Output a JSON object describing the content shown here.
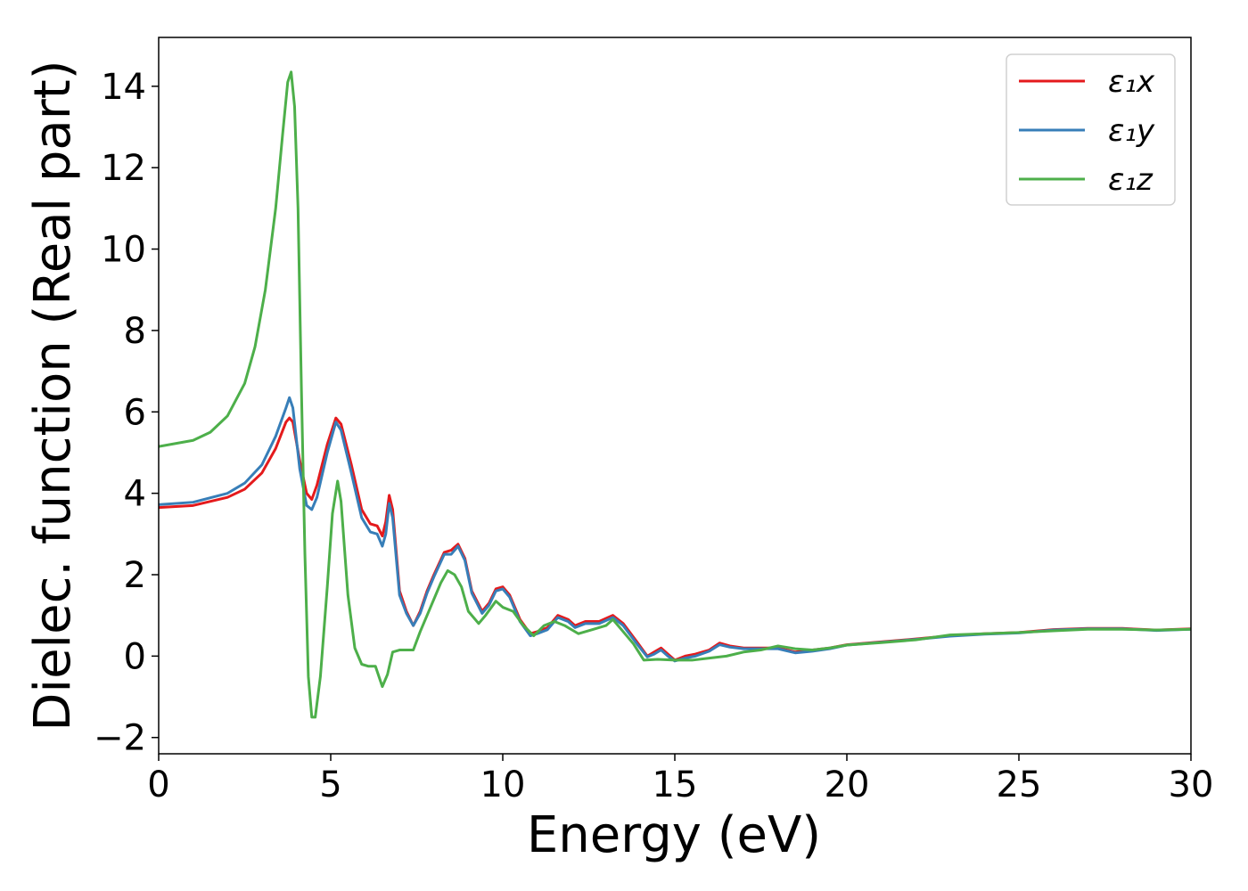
{
  "chart_data": {
    "type": "line",
    "title": "",
    "xlabel": "Energy (eV)",
    "ylabel": "Dielec. function (Real part)",
    "xlim": [
      0,
      30
    ],
    "ylim": [
      -2.4,
      15.2
    ],
    "xticks": [
      0,
      5,
      10,
      15,
      20,
      25,
      30
    ],
    "xtick_labels": [
      "0",
      "5",
      "10",
      "15",
      "20",
      "25",
      "30"
    ],
    "yticks": [
      -2,
      0,
      2,
      4,
      6,
      8,
      10,
      12,
      14
    ],
    "ytick_labels": [
      "−2",
      "0",
      "2",
      "4",
      "6",
      "8",
      "10",
      "12",
      "14"
    ],
    "grid": false,
    "legend_position": "top-right",
    "series": [
      {
        "name": "ε₁x",
        "color": "#e41a1c",
        "points": [
          [
            0,
            3.65
          ],
          [
            1,
            3.7
          ],
          [
            2,
            3.9
          ],
          [
            2.5,
            4.1
          ],
          [
            3,
            4.5
          ],
          [
            3.4,
            5.1
          ],
          [
            3.7,
            5.75
          ],
          [
            3.8,
            5.85
          ],
          [
            3.9,
            5.75
          ],
          [
            4.1,
            4.8
          ],
          [
            4.3,
            4.0
          ],
          [
            4.45,
            3.85
          ],
          [
            4.6,
            4.2
          ],
          [
            4.9,
            5.2
          ],
          [
            5.15,
            5.85
          ],
          [
            5.3,
            5.7
          ],
          [
            5.6,
            4.7
          ],
          [
            5.9,
            3.6
          ],
          [
            6.15,
            3.25
          ],
          [
            6.35,
            3.2
          ],
          [
            6.5,
            2.95
          ],
          [
            6.6,
            3.3
          ],
          [
            6.7,
            3.95
          ],
          [
            6.8,
            3.6
          ],
          [
            7.0,
            1.6
          ],
          [
            7.2,
            1.1
          ],
          [
            7.4,
            0.75
          ],
          [
            7.6,
            1.1
          ],
          [
            7.8,
            1.6
          ],
          [
            8.0,
            2.0
          ],
          [
            8.3,
            2.55
          ],
          [
            8.5,
            2.6
          ],
          [
            8.7,
            2.75
          ],
          [
            8.9,
            2.4
          ],
          [
            9.1,
            1.6
          ],
          [
            9.4,
            1.1
          ],
          [
            9.6,
            1.3
          ],
          [
            9.8,
            1.65
          ],
          [
            10.0,
            1.7
          ],
          [
            10.2,
            1.5
          ],
          [
            10.5,
            0.9
          ],
          [
            10.8,
            0.55
          ],
          [
            11.0,
            0.6
          ],
          [
            11.3,
            0.7
          ],
          [
            11.6,
            1.0
          ],
          [
            11.9,
            0.9
          ],
          [
            12.1,
            0.75
          ],
          [
            12.4,
            0.85
          ],
          [
            12.8,
            0.85
          ],
          [
            13.2,
            1.0
          ],
          [
            13.5,
            0.8
          ],
          [
            13.9,
            0.35
          ],
          [
            14.2,
            0.0
          ],
          [
            14.4,
            0.1
          ],
          [
            14.6,
            0.2
          ],
          [
            14.8,
            0.05
          ],
          [
            15.0,
            -0.1
          ],
          [
            15.3,
            0.0
          ],
          [
            15.6,
            0.05
          ],
          [
            16.0,
            0.15
          ],
          [
            16.3,
            0.32
          ],
          [
            16.6,
            0.25
          ],
          [
            17.0,
            0.2
          ],
          [
            17.5,
            0.2
          ],
          [
            18.0,
            0.2
          ],
          [
            18.5,
            0.1
          ],
          [
            19.0,
            0.15
          ],
          [
            19.5,
            0.2
          ],
          [
            20,
            0.28
          ],
          [
            21,
            0.35
          ],
          [
            22,
            0.42
          ],
          [
            23,
            0.5
          ],
          [
            24,
            0.55
          ],
          [
            25,
            0.58
          ],
          [
            26,
            0.65
          ],
          [
            27,
            0.68
          ],
          [
            28,
            0.68
          ],
          [
            29,
            0.64
          ],
          [
            30,
            0.67
          ]
        ]
      },
      {
        "name": "ε₁y",
        "color": "#377eb8",
        "points": [
          [
            0,
            3.72
          ],
          [
            1,
            3.78
          ],
          [
            2,
            4.0
          ],
          [
            2.5,
            4.25
          ],
          [
            3,
            4.7
          ],
          [
            3.4,
            5.4
          ],
          [
            3.7,
            6.1
          ],
          [
            3.8,
            6.35
          ],
          [
            3.9,
            6.1
          ],
          [
            4.1,
            4.6
          ],
          [
            4.3,
            3.7
          ],
          [
            4.45,
            3.6
          ],
          [
            4.6,
            3.9
          ],
          [
            4.9,
            5.0
          ],
          [
            5.15,
            5.75
          ],
          [
            5.3,
            5.55
          ],
          [
            5.6,
            4.5
          ],
          [
            5.9,
            3.4
          ],
          [
            6.15,
            3.05
          ],
          [
            6.35,
            3.0
          ],
          [
            6.5,
            2.7
          ],
          [
            6.6,
            3.0
          ],
          [
            6.7,
            3.75
          ],
          [
            6.8,
            3.4
          ],
          [
            7.0,
            1.5
          ],
          [
            7.2,
            1.05
          ],
          [
            7.4,
            0.75
          ],
          [
            7.6,
            1.05
          ],
          [
            7.8,
            1.55
          ],
          [
            8.0,
            1.95
          ],
          [
            8.3,
            2.5
          ],
          [
            8.5,
            2.5
          ],
          [
            8.7,
            2.7
          ],
          [
            8.9,
            2.35
          ],
          [
            9.1,
            1.55
          ],
          [
            9.4,
            1.05
          ],
          [
            9.6,
            1.25
          ],
          [
            9.8,
            1.6
          ],
          [
            10.0,
            1.65
          ],
          [
            10.2,
            1.45
          ],
          [
            10.5,
            0.85
          ],
          [
            10.8,
            0.5
          ],
          [
            11.0,
            0.55
          ],
          [
            11.3,
            0.65
          ],
          [
            11.6,
            0.95
          ],
          [
            11.9,
            0.85
          ],
          [
            12.1,
            0.7
          ],
          [
            12.4,
            0.8
          ],
          [
            12.8,
            0.8
          ],
          [
            13.2,
            0.95
          ],
          [
            13.5,
            0.75
          ],
          [
            13.9,
            0.3
          ],
          [
            14.2,
            -0.02
          ],
          [
            14.4,
            0.05
          ],
          [
            14.6,
            0.15
          ],
          [
            14.8,
            0.0
          ],
          [
            15.0,
            -0.12
          ],
          [
            15.3,
            -0.05
          ],
          [
            15.6,
            0.0
          ],
          [
            16.0,
            0.12
          ],
          [
            16.3,
            0.28
          ],
          [
            16.6,
            0.22
          ],
          [
            17.0,
            0.18
          ],
          [
            17.5,
            0.18
          ],
          [
            18.0,
            0.18
          ],
          [
            18.5,
            0.08
          ],
          [
            19.0,
            0.12
          ],
          [
            19.5,
            0.18
          ],
          [
            20,
            0.27
          ],
          [
            21,
            0.34
          ],
          [
            22,
            0.41
          ],
          [
            23,
            0.49
          ],
          [
            24,
            0.54
          ],
          [
            25,
            0.57
          ],
          [
            26,
            0.64
          ],
          [
            27,
            0.67
          ],
          [
            28,
            0.67
          ],
          [
            29,
            0.63
          ],
          [
            30,
            0.66
          ]
        ]
      },
      {
        "name": "ε₁z",
        "color": "#4daf4a",
        "points": [
          [
            0,
            5.15
          ],
          [
            1,
            5.3
          ],
          [
            1.5,
            5.5
          ],
          [
            2,
            5.9
          ],
          [
            2.5,
            6.7
          ],
          [
            2.8,
            7.6
          ],
          [
            3.1,
            9.0
          ],
          [
            3.4,
            11.0
          ],
          [
            3.6,
            12.8
          ],
          [
            3.75,
            14.1
          ],
          [
            3.85,
            14.35
          ],
          [
            3.95,
            13.5
          ],
          [
            4.05,
            11.0
          ],
          [
            4.15,
            6.5
          ],
          [
            4.25,
            2.5
          ],
          [
            4.35,
            -0.5
          ],
          [
            4.45,
            -1.5
          ],
          [
            4.55,
            -1.5
          ],
          [
            4.7,
            -0.5
          ],
          [
            4.9,
            1.7
          ],
          [
            5.05,
            3.5
          ],
          [
            5.2,
            4.3
          ],
          [
            5.3,
            3.8
          ],
          [
            5.5,
            1.5
          ],
          [
            5.7,
            0.2
          ],
          [
            5.9,
            -0.2
          ],
          [
            6.1,
            -0.25
          ],
          [
            6.3,
            -0.25
          ],
          [
            6.5,
            -0.75
          ],
          [
            6.65,
            -0.45
          ],
          [
            6.8,
            0.1
          ],
          [
            7.0,
            0.15
          ],
          [
            7.2,
            0.15
          ],
          [
            7.4,
            0.15
          ],
          [
            7.6,
            0.6
          ],
          [
            7.9,
            1.2
          ],
          [
            8.2,
            1.8
          ],
          [
            8.4,
            2.1
          ],
          [
            8.6,
            2.0
          ],
          [
            8.8,
            1.7
          ],
          [
            9.0,
            1.1
          ],
          [
            9.3,
            0.8
          ],
          [
            9.5,
            1.0
          ],
          [
            9.8,
            1.35
          ],
          [
            10.0,
            1.2
          ],
          [
            10.3,
            1.1
          ],
          [
            10.6,
            0.75
          ],
          [
            10.9,
            0.5
          ],
          [
            11.2,
            0.75
          ],
          [
            11.5,
            0.85
          ],
          [
            11.8,
            0.75
          ],
          [
            12.2,
            0.55
          ],
          [
            12.6,
            0.65
          ],
          [
            13.0,
            0.75
          ],
          [
            13.2,
            0.9
          ],
          [
            13.5,
            0.6
          ],
          [
            13.8,
            0.3
          ],
          [
            14.1,
            -0.1
          ],
          [
            14.5,
            -0.08
          ],
          [
            15.0,
            -0.1
          ],
          [
            15.5,
            -0.1
          ],
          [
            16.0,
            -0.05
          ],
          [
            16.5,
            0.0
          ],
          [
            17.0,
            0.1
          ],
          [
            17.5,
            0.15
          ],
          [
            18.0,
            0.25
          ],
          [
            18.5,
            0.18
          ],
          [
            19.0,
            0.15
          ],
          [
            19.5,
            0.2
          ],
          [
            20,
            0.27
          ],
          [
            21,
            0.33
          ],
          [
            22,
            0.4
          ],
          [
            23,
            0.52
          ],
          [
            24,
            0.55
          ],
          [
            25,
            0.58
          ],
          [
            26,
            0.62
          ],
          [
            27,
            0.66
          ],
          [
            28,
            0.66
          ],
          [
            29,
            0.64
          ],
          [
            30,
            0.66
          ]
        ]
      }
    ]
  }
}
